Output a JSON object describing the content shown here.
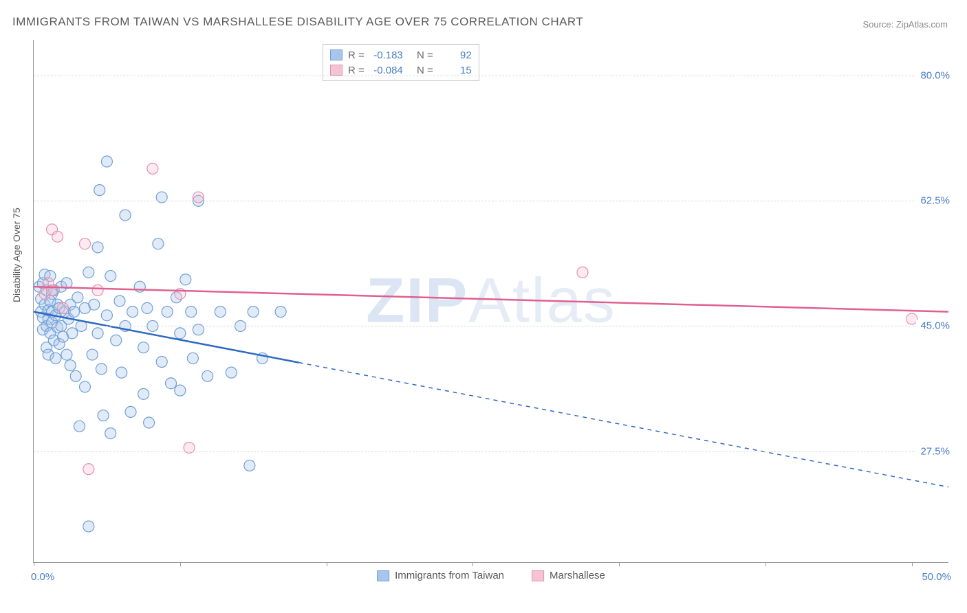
{
  "title": "IMMIGRANTS FROM TAIWAN VS MARSHALLESE DISABILITY AGE OVER 75 CORRELATION CHART",
  "source_label": "Source: ",
  "source_value": "ZipAtlas.com",
  "watermark_a": "ZIP",
  "watermark_b": "Atlas",
  "ylabel": "Disability Age Over 75",
  "chart": {
    "type": "scatter",
    "xlim": [
      0,
      50
    ],
    "ylim": [
      12,
      85
    ],
    "x_ticks_pct": [
      0,
      8,
      16,
      24,
      32,
      40,
      48
    ],
    "y_gridlines": [
      27.5,
      45.0,
      62.5,
      80.0
    ],
    "x_min_label": "0.0%",
    "x_max_label": "50.0%",
    "background_color": "#ffffff",
    "grid_color": "#d8d8d8",
    "axis_color": "#999999",
    "tick_label_color": "#4a7ec9",
    "marker_radius": 8,
    "marker_stroke_width": 1.2,
    "marker_fill_opacity": 0.35,
    "trend_line_width": 2.5
  },
  "corr": {
    "r_label": "R =",
    "n_label": "N =",
    "rows": [
      {
        "r": "-0.183",
        "n": "92"
      },
      {
        "r": "-0.084",
        "n": "15"
      }
    ]
  },
  "series": [
    {
      "name": "Immigrants from Taiwan",
      "color_fill": "#a8c5eb",
      "color_stroke": "#6f9fd8",
      "trend_color": "#2e69c1",
      "trend_y_at_xmin": 47.0,
      "trend_y_at_xmax": 22.5,
      "trend_solid_until_x": 14.5,
      "points": [
        [
          0.3,
          50.5
        ],
        [
          0.4,
          47.0
        ],
        [
          0.4,
          48.8
        ],
        [
          0.5,
          51.0
        ],
        [
          0.5,
          44.5
        ],
        [
          0.5,
          46.2
        ],
        [
          0.6,
          52.2
        ],
        [
          0.6,
          48.0
        ],
        [
          0.7,
          45.0
        ],
        [
          0.7,
          50.0
        ],
        [
          0.7,
          42.0
        ],
        [
          0.8,
          46.0
        ],
        [
          0.8,
          47.2
        ],
        [
          0.8,
          41.0
        ],
        [
          0.9,
          48.5
        ],
        [
          0.9,
          44.0
        ],
        [
          0.9,
          52.0
        ],
        [
          1.0,
          45.5
        ],
        [
          1.0,
          47.0
        ],
        [
          1.0,
          49.5
        ],
        [
          1.1,
          43.0
        ],
        [
          1.1,
          50.0
        ],
        [
          1.2,
          46.5
        ],
        [
          1.2,
          40.5
        ],
        [
          1.3,
          48.0
        ],
        [
          1.3,
          44.8
        ],
        [
          1.4,
          47.5
        ],
        [
          1.4,
          42.5
        ],
        [
          1.5,
          50.5
        ],
        [
          1.5,
          45.0
        ],
        [
          1.6,
          43.5
        ],
        [
          1.7,
          47.0
        ],
        [
          1.8,
          51.0
        ],
        [
          1.8,
          41.0
        ],
        [
          1.9,
          46.0
        ],
        [
          2.0,
          48.0
        ],
        [
          2.0,
          39.5
        ],
        [
          2.1,
          44.0
        ],
        [
          2.2,
          47.0
        ],
        [
          2.3,
          38.0
        ],
        [
          2.4,
          49.0
        ],
        [
          2.5,
          31.0
        ],
        [
          2.6,
          45.0
        ],
        [
          2.8,
          47.5
        ],
        [
          2.8,
          36.5
        ],
        [
          3.0,
          17.0
        ],
        [
          3.0,
          52.5
        ],
        [
          3.2,
          41.0
        ],
        [
          3.3,
          48.0
        ],
        [
          3.5,
          44.0
        ],
        [
          3.5,
          56.0
        ],
        [
          3.6,
          64.0
        ],
        [
          3.7,
          39.0
        ],
        [
          3.8,
          32.5
        ],
        [
          4.0,
          46.5
        ],
        [
          4.0,
          68.0
        ],
        [
          4.2,
          52.0
        ],
        [
          4.2,
          30.0
        ],
        [
          4.5,
          43.0
        ],
        [
          4.7,
          48.5
        ],
        [
          4.8,
          38.5
        ],
        [
          5.0,
          45.0
        ],
        [
          5.0,
          60.5
        ],
        [
          5.3,
          33.0
        ],
        [
          5.4,
          47.0
        ],
        [
          5.8,
          50.5
        ],
        [
          6.0,
          42.0
        ],
        [
          6.0,
          35.5
        ],
        [
          6.2,
          47.5
        ],
        [
          6.3,
          31.5
        ],
        [
          6.5,
          45.0
        ],
        [
          6.8,
          56.5
        ],
        [
          7.0,
          40.0
        ],
        [
          7.0,
          63.0
        ],
        [
          7.3,
          47.0
        ],
        [
          7.5,
          37.0
        ],
        [
          7.8,
          49.0
        ],
        [
          8.0,
          44.0
        ],
        [
          8.0,
          36.0
        ],
        [
          8.3,
          51.5
        ],
        [
          8.6,
          47.0
        ],
        [
          8.7,
          40.5
        ],
        [
          9.0,
          44.5
        ],
        [
          9.0,
          62.5
        ],
        [
          9.5,
          38.0
        ],
        [
          10.2,
          47.0
        ],
        [
          10.8,
          38.5
        ],
        [
          11.3,
          45.0
        ],
        [
          11.8,
          25.5
        ],
        [
          12.0,
          47.0
        ],
        [
          12.5,
          40.5
        ],
        [
          13.5,
          47.0
        ]
      ]
    },
    {
      "name": "Marshallese",
      "color_fill": "#f3c4d2",
      "color_stroke": "#e78fb0",
      "trend_color": "#e15f8f",
      "trend_y_at_xmin": 50.5,
      "trend_y_at_xmax": 47.0,
      "trend_solid_until_x": 50,
      "points": [
        [
          0.6,
          49.5
        ],
        [
          0.8,
          51.0
        ],
        [
          1.0,
          58.5
        ],
        [
          1.0,
          50.0
        ],
        [
          1.3,
          57.5
        ],
        [
          1.6,
          47.5
        ],
        [
          2.8,
          56.5
        ],
        [
          3.0,
          25.0
        ],
        [
          3.5,
          50.0
        ],
        [
          6.5,
          67.0
        ],
        [
          8.0,
          49.5
        ],
        [
          8.5,
          28.0
        ],
        [
          9.0,
          63.0
        ],
        [
          30.0,
          52.5
        ],
        [
          48.0,
          46.0
        ]
      ]
    }
  ],
  "legend": {
    "label_a": "Immigrants from Taiwan",
    "label_b": "Marshallese"
  }
}
